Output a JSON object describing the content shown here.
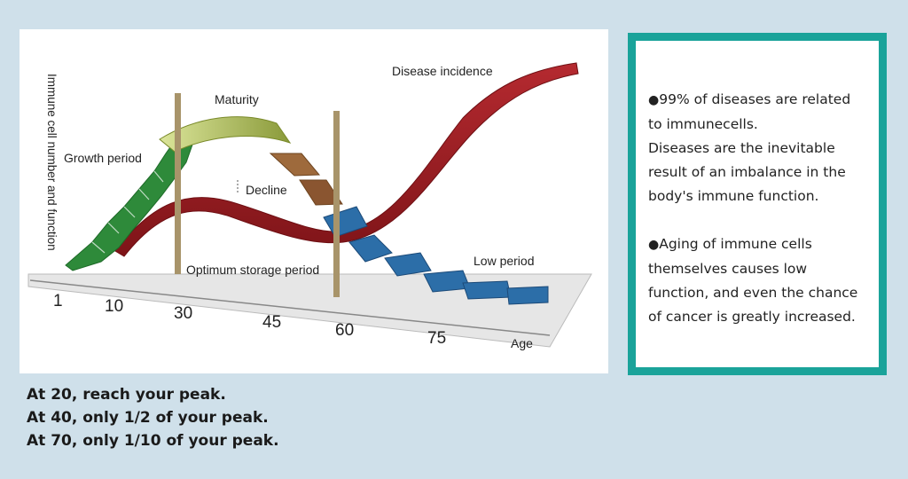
{
  "diagram": {
    "y_axis_label": "Immune cell number and function",
    "x_axis_title": "Age",
    "x_ticks": [
      "1",
      "10",
      "30",
      "45",
      "60",
      "75"
    ],
    "stages": {
      "growth": "Growth period",
      "maturity": "Maturity",
      "decline": "Decline",
      "optimum": "Optimum storage period",
      "low": "Low period",
      "disease": "Disease incidence"
    },
    "colors": {
      "growth": "#2e8a3a",
      "maturity": "#c8d97a",
      "decline": "#9a6a3a",
      "low": "#2c6ea8",
      "disease": "#a31f24",
      "pole": "#a8946a"
    }
  },
  "info": {
    "bullet_char": "●",
    "point1_line1": "99% of diseases are related to immunecells.",
    "point1_line2": "Diseases are the inevitable result of an imbalance in the body's immune function.",
    "point2": "Aging of immune cells themselves causes low function, and even the chance of cancer is greatly increased."
  },
  "notes": [
    "At 20, reach your peak.",
    "At 40, only 1/2 of your peak.",
    "At 70, only 1/10 of your peak."
  ]
}
